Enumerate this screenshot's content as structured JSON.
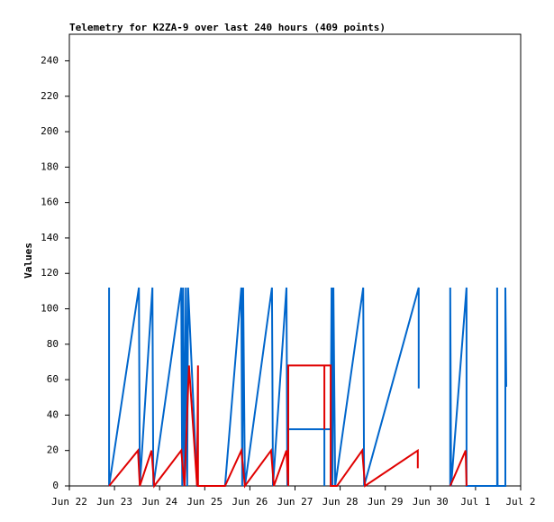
{
  "chart_data": {
    "type": "line",
    "title": "Telemetry for K2ZA-9 over last 240 hours (409 points)",
    "y_label": "Values",
    "xlim": [
      0,
      10
    ],
    "xticks": [
      {
        "value": 0,
        "label": "Jun 22"
      },
      {
        "value": 1,
        "label": "Jun 23"
      },
      {
        "value": 2,
        "label": "Jun 24"
      },
      {
        "value": 3,
        "label": "Jun 25"
      },
      {
        "value": 4,
        "label": "Jun 26"
      },
      {
        "value": 5,
        "label": "Jun 27"
      },
      {
        "value": 6,
        "label": "Jun 28"
      },
      {
        "value": 7,
        "label": "Jun 29"
      },
      {
        "value": 8,
        "label": "Jun 30"
      },
      {
        "value": 9,
        "label": "Jul 1"
      },
      {
        "value": 10,
        "label": "Jul 2"
      }
    ],
    "ylim": [
      0,
      255
    ],
    "yticks": [
      0,
      20,
      40,
      60,
      80,
      100,
      120,
      140,
      160,
      180,
      200,
      220,
      240
    ],
    "series": [
      {
        "color": "#0066cc",
        "x": [
          0.88,
          0.88,
          1.54,
          1.56,
          1.84,
          1.86,
          2.48,
          2.5,
          2.52,
          2.55,
          2.58,
          2.61,
          2.63,
          2.83,
          3.45,
          3.81,
          3.83,
          3.85,
          3.89,
          4.49,
          4.51,
          4.81,
          4.83,
          4.85,
          5.65,
          5.65,
          5.65,
          5.79,
          5.81,
          5.83,
          5.85,
          5.89,
          6.51,
          6.53,
          7.74,
          7.74,
          8.4,
          8.44,
          8.44,
          8.46,
          8.8,
          8.8,
          9.48,
          9.48,
          9.49,
          9.66,
          9.66,
          9.68
        ],
        "values": [
          112,
          0,
          112,
          0,
          112,
          0,
          112,
          0,
          112,
          0,
          112,
          0,
          112,
          0,
          0,
          112,
          0,
          112,
          0,
          112,
          0,
          112,
          0,
          32,
          32,
          0,
          32,
          32,
          112,
          0,
          112,
          0,
          112,
          0,
          112,
          55,
          null,
          0,
          112,
          0,
          112,
          0,
          0,
          112,
          0,
          0,
          112,
          56
        ]
      },
      {
        "color": "#e00000",
        "x": [
          0.88,
          1.52,
          1.56,
          1.82,
          1.88,
          2.48,
          2.55,
          2.65,
          2.83,
          2.85,
          2.85,
          3.45,
          3.81,
          3.89,
          4.47,
          4.53,
          4.81,
          4.85,
          4.85,
          5.65,
          5.65,
          5.65,
          5.79,
          5.79,
          5.93,
          6.49,
          6.55,
          7.72,
          7.72,
          8.4,
          8.44,
          8.78,
          8.8
        ],
        "values": [
          0,
          20,
          0,
          20,
          0,
          20,
          0,
          68,
          0,
          68,
          0,
          0,
          20,
          0,
          20,
          0,
          20,
          0,
          68,
          68,
          32,
          68,
          68,
          0,
          0,
          20,
          0,
          20,
          10,
          null,
          0,
          20,
          0
        ]
      }
    ]
  }
}
